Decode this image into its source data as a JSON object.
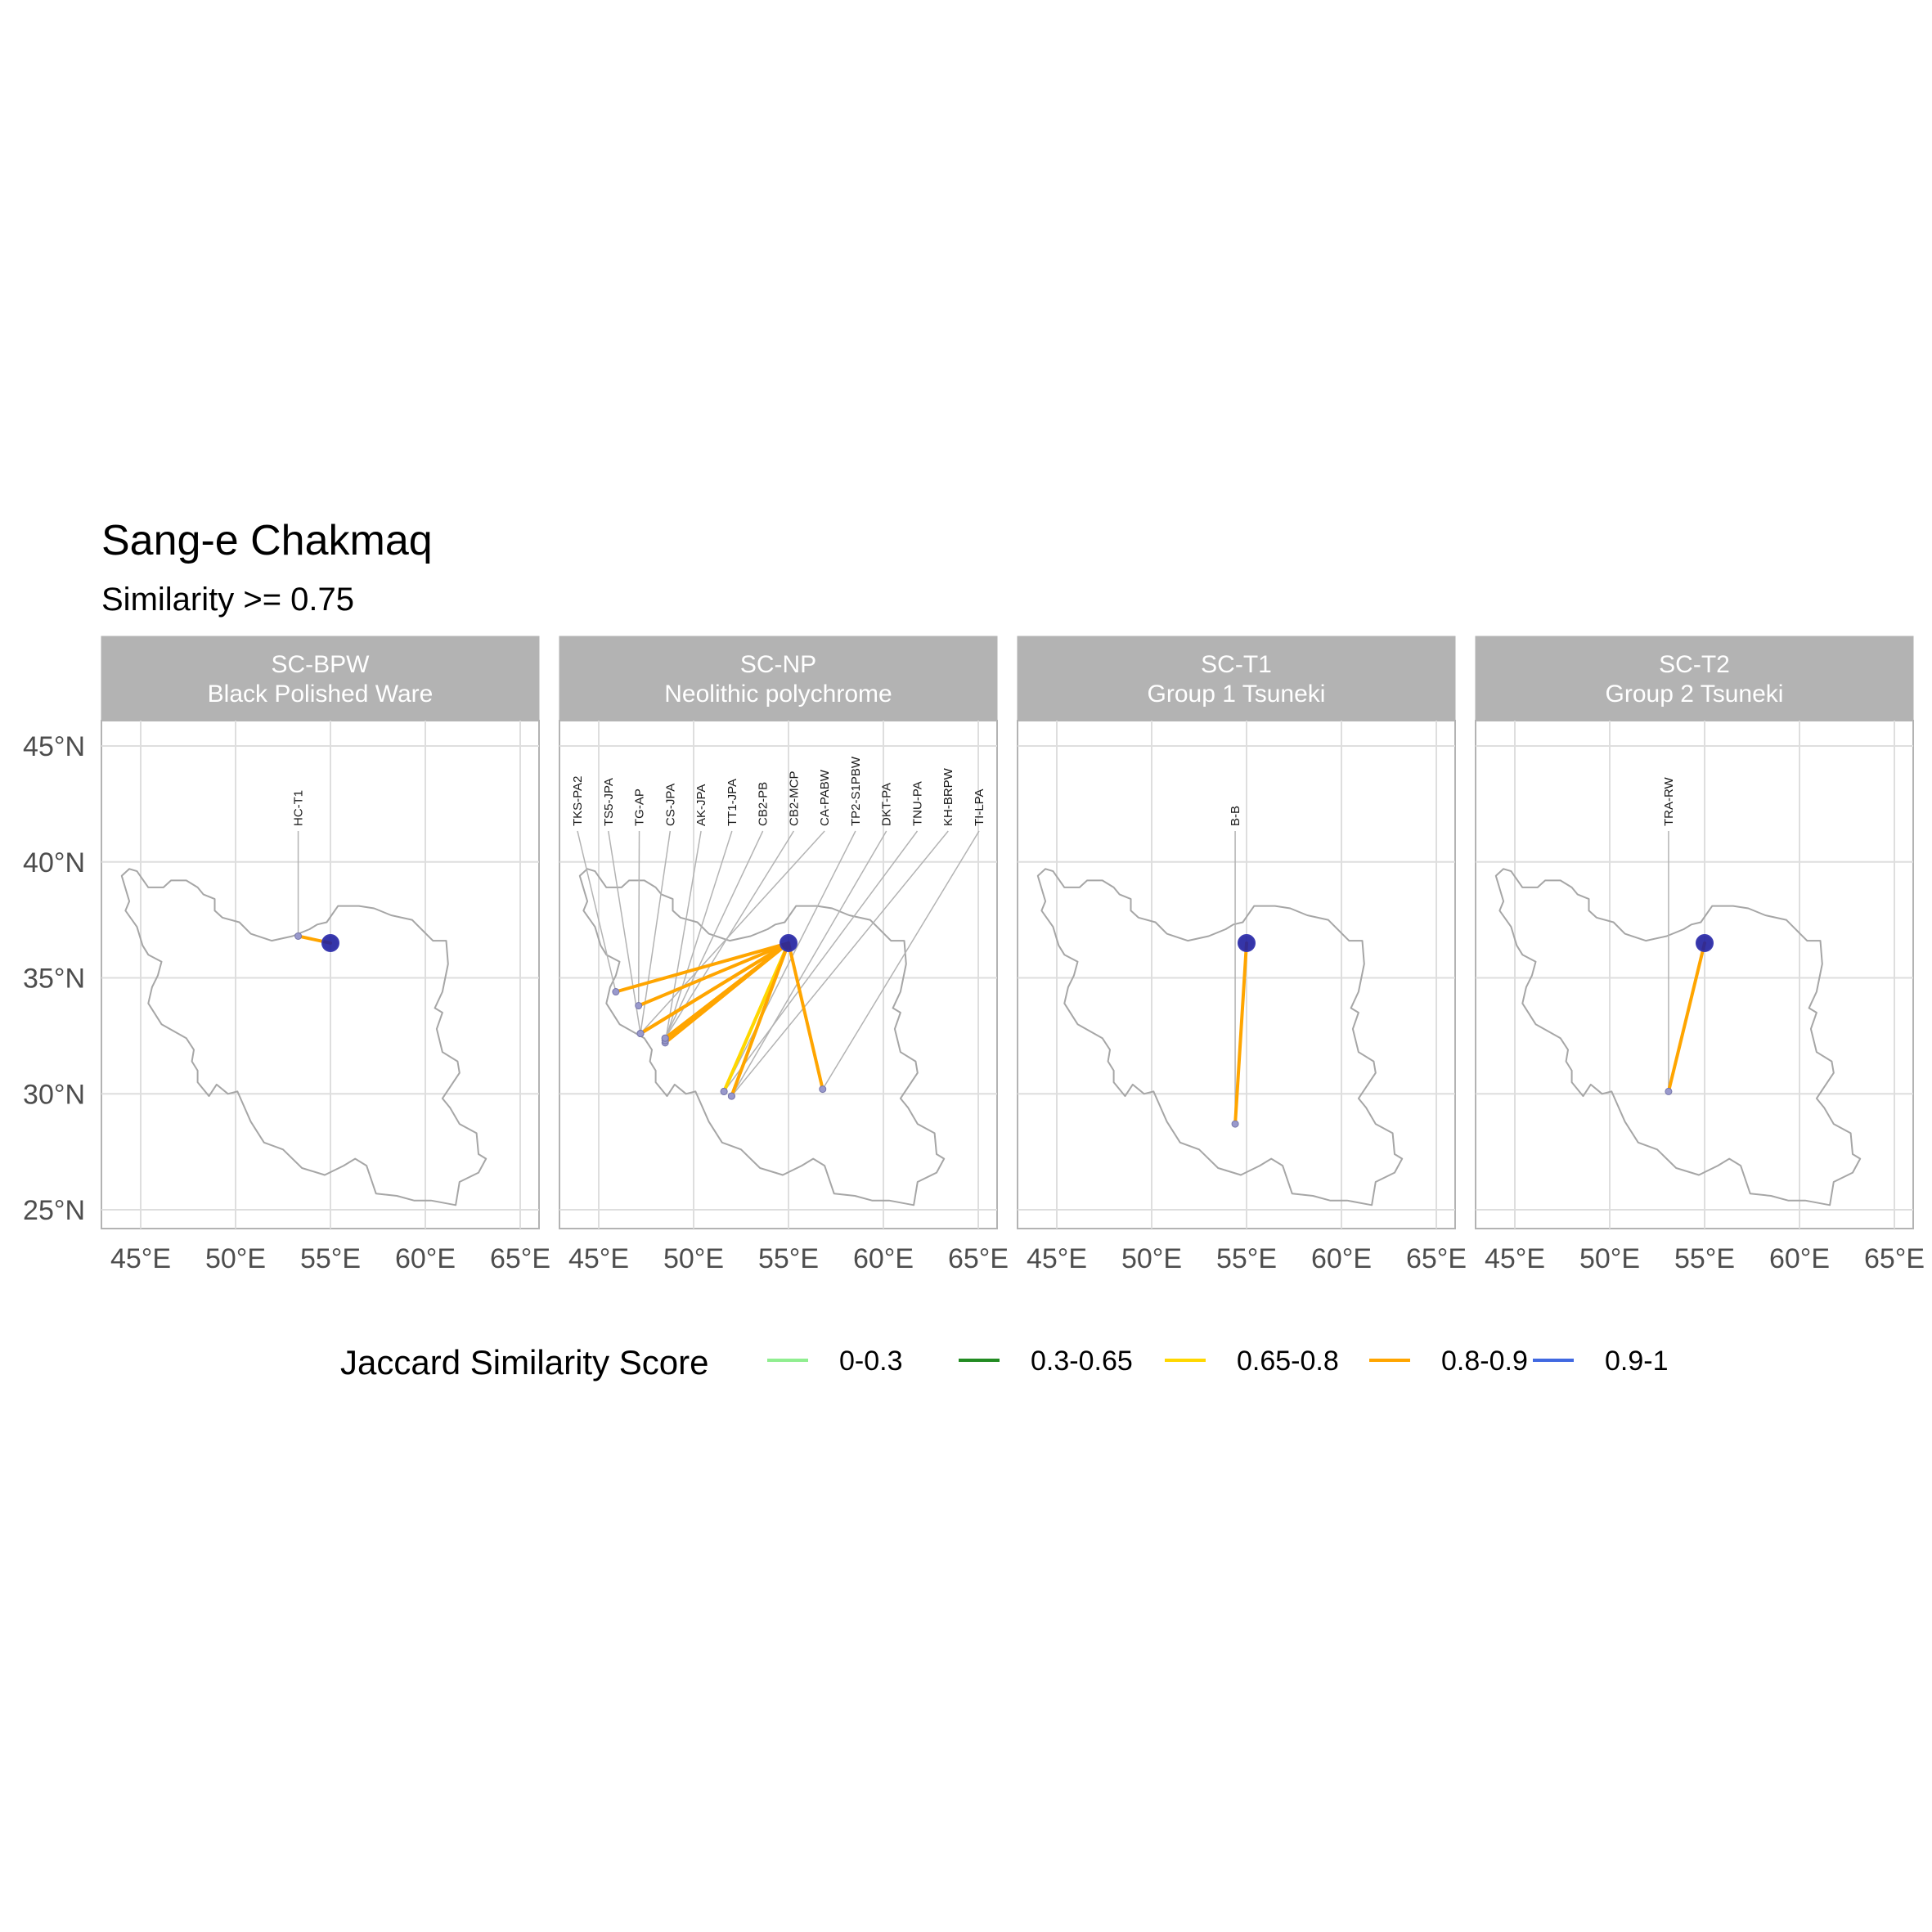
{
  "chart_data": {
    "type": "map",
    "title": "Sang-e Chakmaq",
    "subtitle": "Similarity >= 0.75",
    "x_ticks": [
      "45°E",
      "50°E",
      "55°E",
      "60°E",
      "65°E"
    ],
    "x_tick_values": [
      45,
      50,
      55,
      60,
      65
    ],
    "y_ticks": [
      "45°N",
      "40°N",
      "35°N",
      "30°N",
      "25°N"
    ],
    "y_tick_values": [
      45,
      40,
      35,
      30,
      25
    ],
    "xlim": [
      43,
      66
    ],
    "ylim": [
      24.2,
      46.2
    ],
    "grid": true,
    "origin": {
      "lon": 55.0,
      "lat": 36.5
    },
    "panels": [
      {
        "code": "SC-BPW",
        "name": "Black Polished Ware",
        "links": [
          {
            "label": "HC-T1",
            "lon": 53.3,
            "lat": 36.8,
            "score_class": "0.8-0.9"
          }
        ]
      },
      {
        "code": "SC-NP",
        "name": "Neolithic polychrome",
        "links": [
          {
            "label": "TKS-PA2",
            "lon": 45.9,
            "lat": 34.4,
            "score_class": "0.8-0.9"
          },
          {
            "label": "TS5-JPA",
            "lon": 47.2,
            "lat": 32.6,
            "score_class": "0.8-0.9"
          },
          {
            "label": "TG-AP",
            "lon": 47.1,
            "lat": 33.8,
            "score_class": "0.8-0.9"
          },
          {
            "label": "CS-JPA",
            "lon": 47.2,
            "lat": 32.6,
            "score_class": "0.8-0.9"
          },
          {
            "label": "AK-JPA",
            "lon": 48.5,
            "lat": 32.2,
            "score_class": "0.8-0.9"
          },
          {
            "label": "TT1-JPA",
            "lon": 48.5,
            "lat": 32.3,
            "score_class": "0.8-0.9"
          },
          {
            "label": "CB2-PB",
            "lon": 48.5,
            "lat": 32.4,
            "score_class": "0.8-0.9"
          },
          {
            "label": "CB2-MCP",
            "lon": 48.5,
            "lat": 32.4,
            "score_class": "0.8-0.9"
          },
          {
            "label": "CA-PABW",
            "lon": 47.2,
            "lat": 32.6,
            "score_class": "0.8-0.9"
          },
          {
            "label": "TP2-S1PBW",
            "lon": 51.6,
            "lat": 30.1,
            "score_class": "0.65-0.8"
          },
          {
            "label": "DKT-PA",
            "lon": 52.0,
            "lat": 29.9,
            "score_class": "0.65-0.8"
          },
          {
            "label": "TNU-PA",
            "lon": 51.6,
            "lat": 30.1,
            "score_class": "0.65-0.8"
          },
          {
            "label": "KH-BRPW",
            "lon": 52.0,
            "lat": 29.9,
            "score_class": "0.8-0.9"
          },
          {
            "label": "TI-LPA",
            "lon": 56.8,
            "lat": 30.2,
            "score_class": "0.8-0.9"
          }
        ]
      },
      {
        "code": "SC-T1",
        "name": "Group 1 Tsuneki",
        "links": [
          {
            "label": "B-B",
            "lon": 54.4,
            "lat": 28.7,
            "score_class": "0.8-0.9"
          }
        ]
      },
      {
        "code": "SC-T2",
        "name": "Group 2 Tsuneki",
        "links": [
          {
            "label": "TRA-RW",
            "lon": 53.1,
            "lat": 30.1,
            "score_class": "0.8-0.9"
          }
        ]
      }
    ],
    "legend": {
      "title": "Jaccard Similarity Score",
      "position": "bottom",
      "items": [
        {
          "label": "0-0.3",
          "color": "#90EE90"
        },
        {
          "label": "0.3-0.65",
          "color": "#228B22"
        },
        {
          "label": "0.65-0.8",
          "color": "#FFD700"
        },
        {
          "label": "0.8-0.9",
          "color": "#FFA500"
        },
        {
          "label": "0.9-1",
          "color": "#4169E1"
        }
      ]
    },
    "colors": {
      "origin_point": "#1f1f9e",
      "border": "#a6a6a6",
      "strip": "#b3b3b3",
      "grid": "#dedede"
    }
  }
}
